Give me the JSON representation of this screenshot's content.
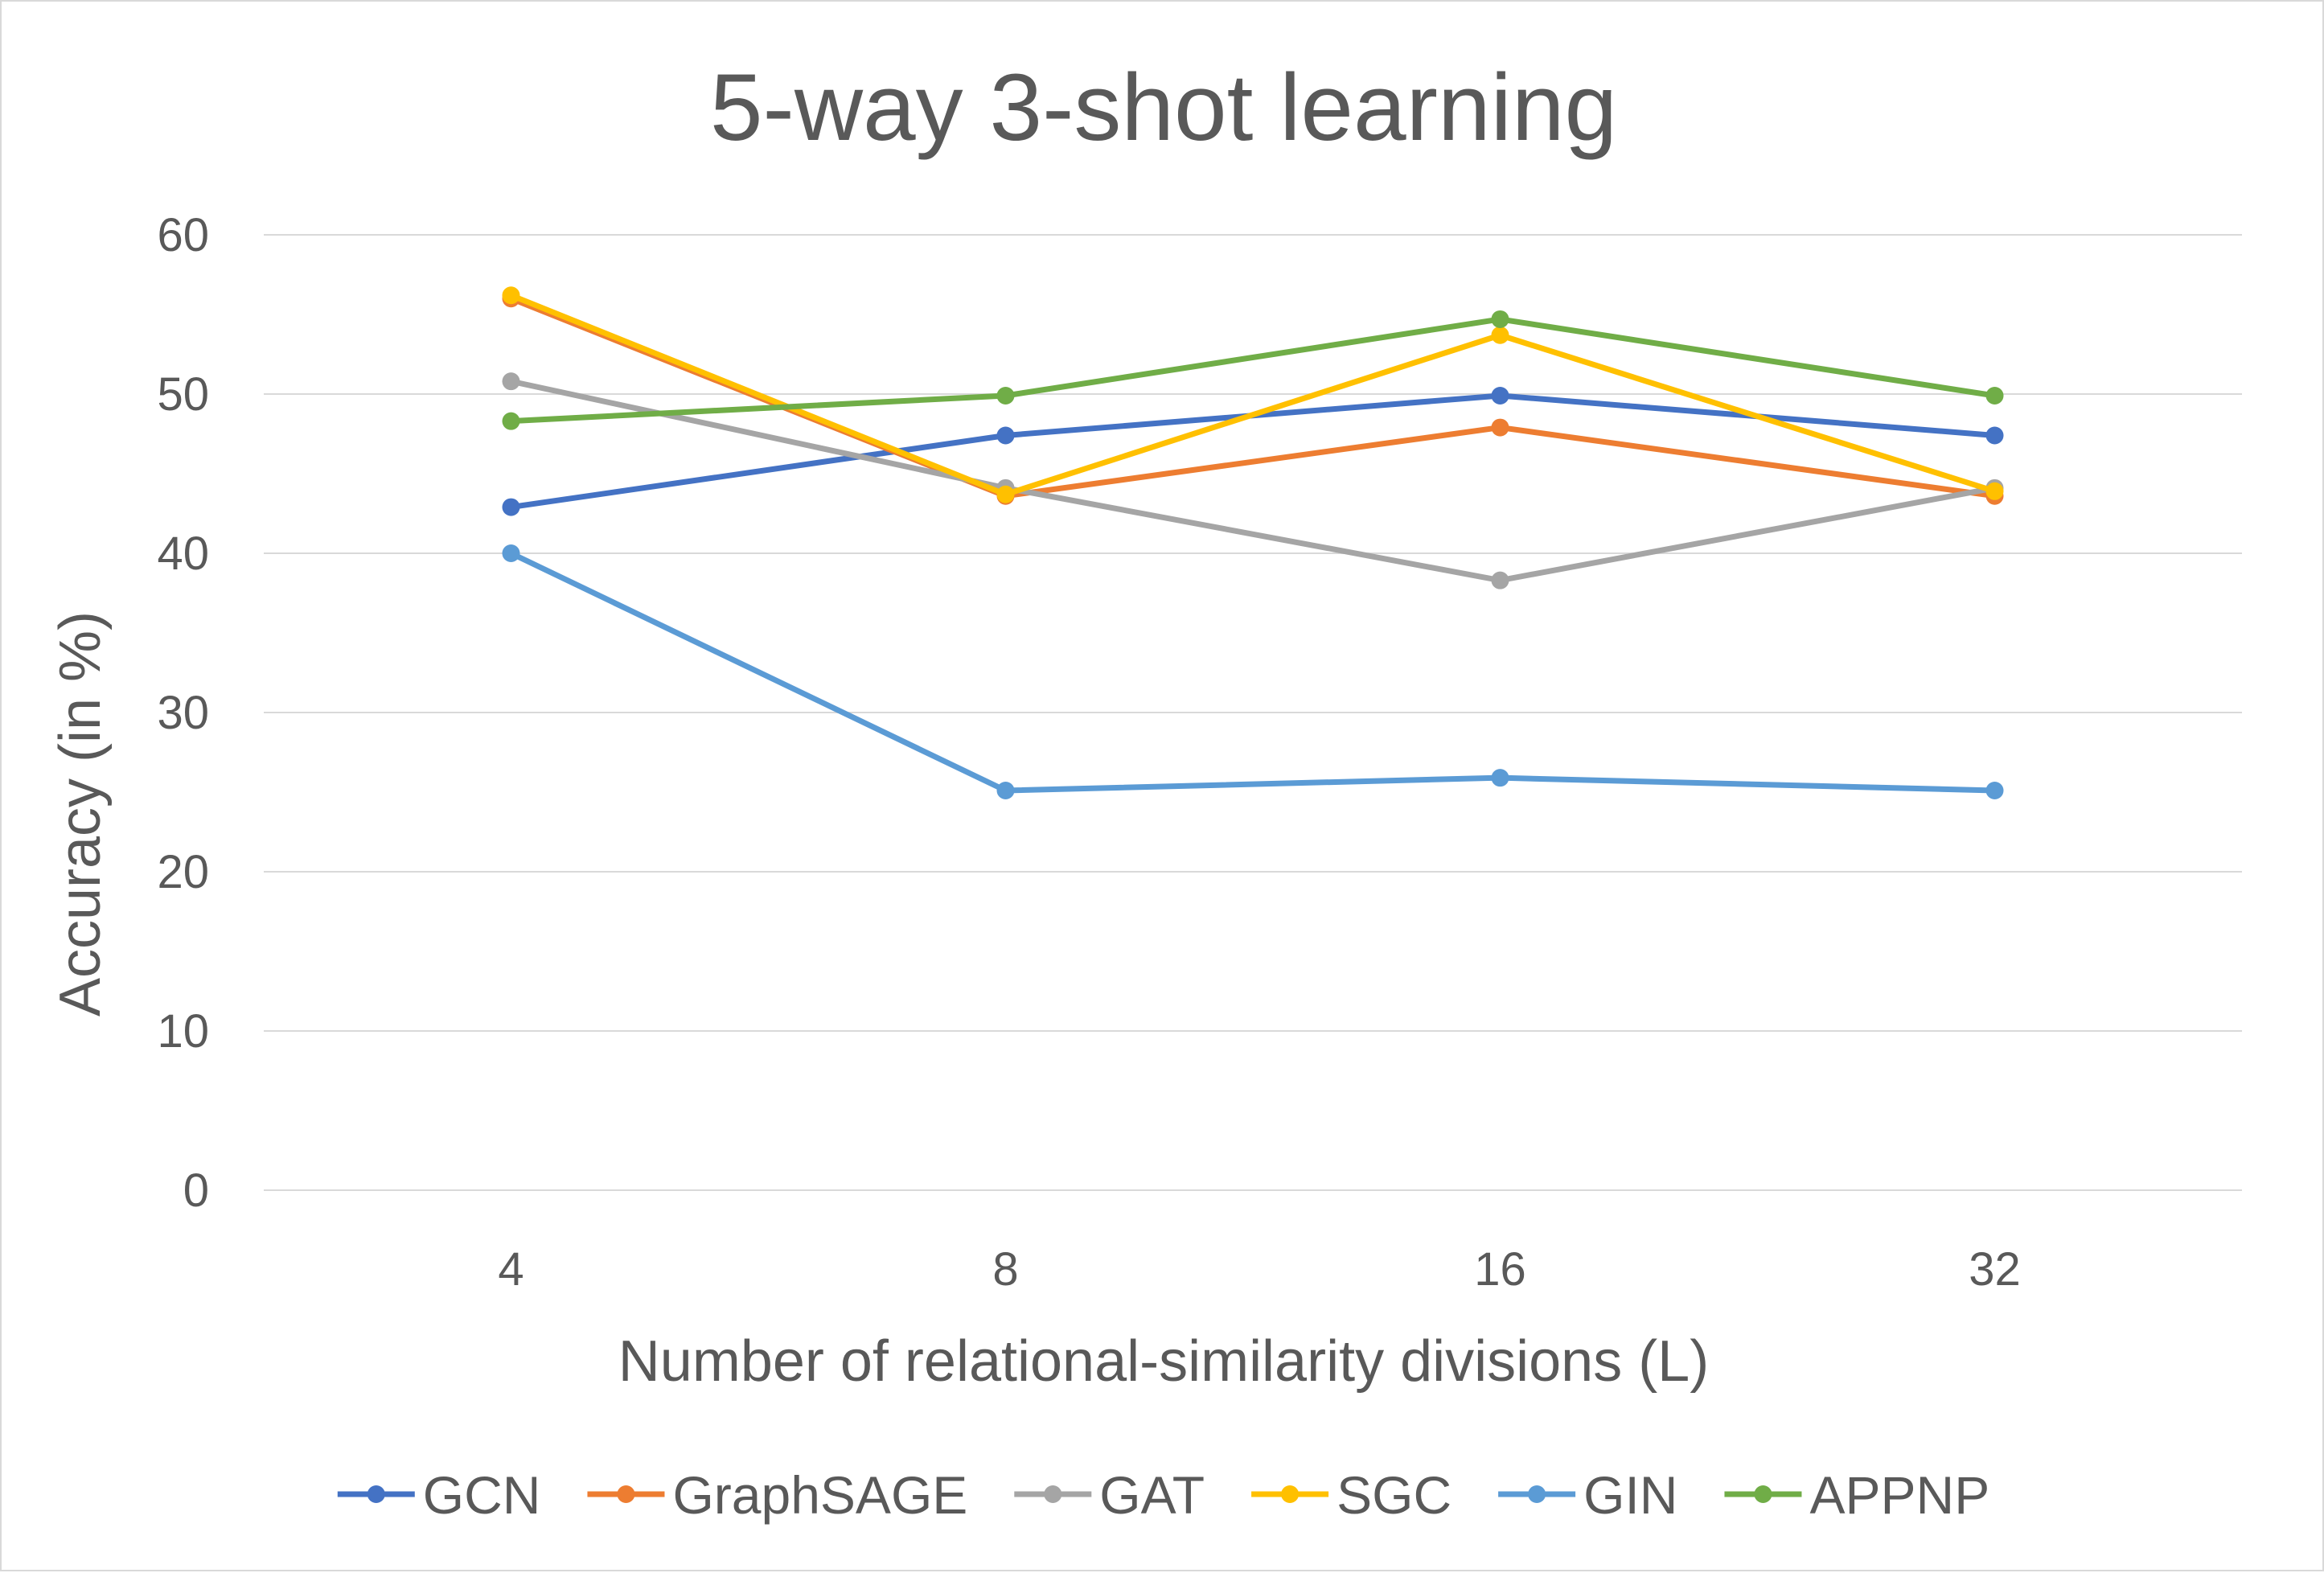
{
  "chart_data": {
    "type": "line",
    "title": "5-way 3-shot learning",
    "xlabel": "Number of  relational-similarity divisions (L)",
    "ylabel": "Accuracy (in %)",
    "categories": [
      "4",
      "8",
      "16",
      "32"
    ],
    "ylim": [
      0,
      60
    ],
    "yticks": [
      "0",
      "10",
      "20",
      "30",
      "40",
      "50",
      "60"
    ],
    "grid": true,
    "legend_position": "bottom",
    "series": [
      {
        "name": "GCN",
        "color": "#4472c4",
        "values": [
          42.9,
          47.4,
          49.9,
          47.4
        ]
      },
      {
        "name": "GraphSAGE",
        "color": "#ed7d31",
        "values": [
          56.0,
          43.6,
          47.9,
          43.6
        ]
      },
      {
        "name": "GAT",
        "color": "#a5a5a5",
        "values": [
          50.8,
          44.1,
          38.3,
          44.1
        ]
      },
      {
        "name": "SGC",
        "color": "#ffc000",
        "values": [
          56.2,
          43.7,
          53.7,
          43.9
        ]
      },
      {
        "name": "GIN",
        "color": "#5b9bd5",
        "values": [
          40.0,
          25.1,
          25.9,
          25.1
        ]
      },
      {
        "name": "APPNP",
        "color": "#70ad47",
        "values": [
          48.3,
          49.9,
          54.7,
          49.9
        ]
      }
    ]
  }
}
